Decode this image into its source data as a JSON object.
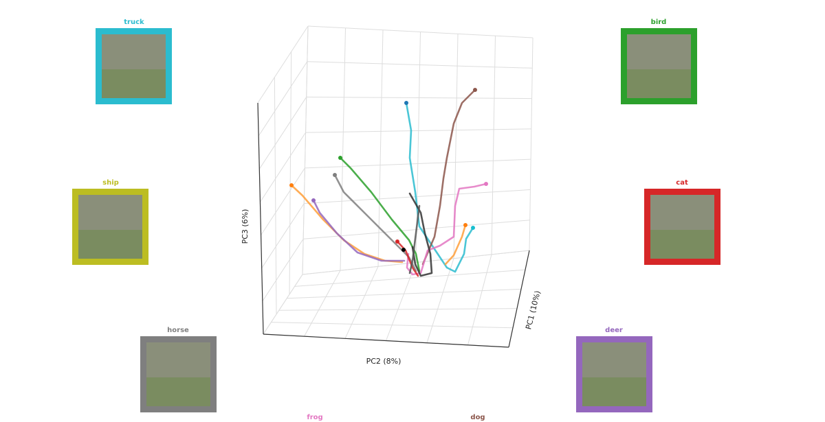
{
  "panels": [
    {
      "label": "truck",
      "color": "#2bbccf"
    },
    {
      "label": "bird",
      "color": "#2ca02c"
    },
    {
      "label": "ship",
      "color": "#bcbd22"
    },
    {
      "label": "cat",
      "color": "#d62728"
    },
    {
      "label": "horse",
      "color": "#7f7f7f"
    },
    {
      "label": "deer",
      "color": "#9467bd"
    },
    {
      "label": "frog",
      "color": "#e377c2"
    },
    {
      "label": "dog",
      "color": "#8c564b"
    }
  ],
  "axes": {
    "x_label": "PC2 (8%)",
    "y_label": "PC1 (10%)",
    "z_label": "PC3 (6%)"
  }
}
